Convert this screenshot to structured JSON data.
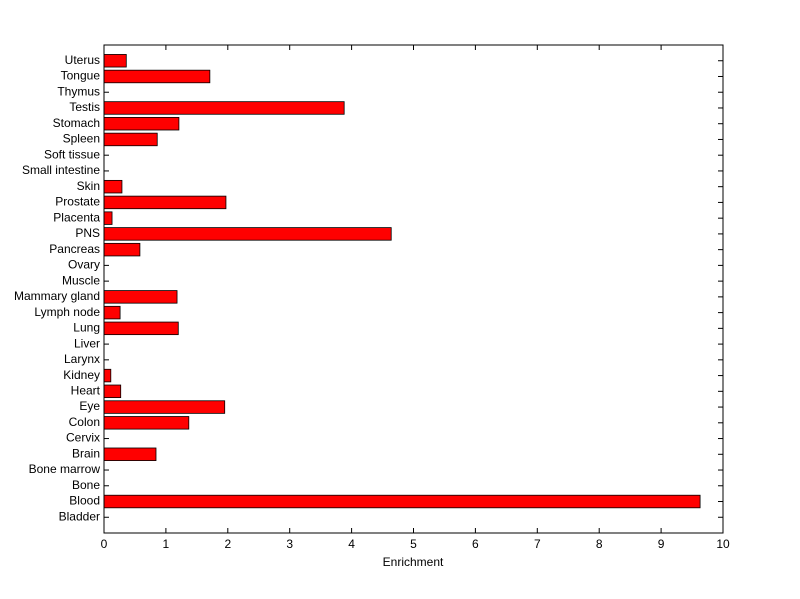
{
  "chart_data": {
    "type": "barh",
    "xlabel": "Enrichment",
    "categories": [
      "Bladder",
      "Blood",
      "Bone",
      "Bone marrow",
      "Brain",
      "Cervix",
      "Colon",
      "Eye",
      "Heart",
      "Kidney",
      "Larynx",
      "Liver",
      "Lung",
      "Lymph node",
      "Mammary gland",
      "Muscle",
      "Ovary",
      "Pancreas",
      "PNS",
      "Placenta",
      "Prostate",
      "Skin",
      "Small intestine",
      "Soft tissue",
      "Spleen",
      "Stomach",
      "Testis",
      "Thymus",
      "Tongue",
      "Uterus"
    ],
    "values": [
      0,
      9.63,
      0,
      0,
      0.84,
      0,
      1.37,
      1.95,
      0.27,
      0.11,
      0,
      0,
      1.2,
      0.26,
      1.18,
      0,
      0,
      0.58,
      4.64,
      0.13,
      1.97,
      0.29,
      0,
      0,
      0.86,
      1.21,
      3.88,
      0,
      1.71,
      0.36
    ],
    "color": "#ff0000",
    "xlim": [
      0,
      10
    ],
    "xticks": [
      0,
      1,
      2,
      3,
      4,
      5,
      6,
      7,
      8,
      9,
      10
    ],
    "grid": false
  }
}
